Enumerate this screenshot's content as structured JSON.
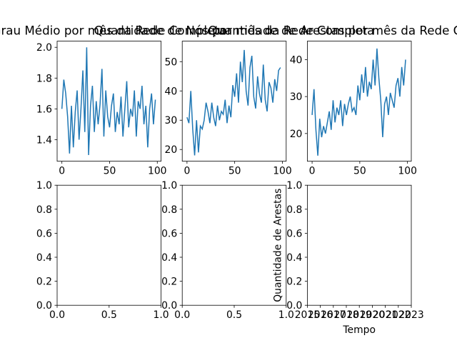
{
  "chart_data": [
    {
      "type": "line",
      "title": "Grau Médio por mês da Rede Completa",
      "x": [
        0,
        2,
        4,
        6,
        8,
        10,
        12,
        14,
        16,
        18,
        20,
        22,
        24,
        26,
        28,
        30,
        32,
        34,
        36,
        38,
        40,
        42,
        44,
        46,
        48,
        50,
        52,
        54,
        56,
        58,
        60,
        62,
        64,
        66,
        68,
        70,
        72,
        74,
        76,
        78,
        80,
        82,
        84,
        86,
        88,
        90,
        92,
        94,
        96,
        98
      ],
      "series": [
        {
          "color": "#1f77b4",
          "values": [
            1.6,
            1.79,
            1.7,
            1.55,
            1.31,
            1.62,
            1.35,
            1.58,
            1.72,
            1.4,
            1.6,
            1.85,
            1.45,
            2.0,
            1.3,
            1.62,
            1.75,
            1.45,
            1.65,
            1.5,
            1.63,
            1.86,
            1.42,
            1.72,
            1.55,
            1.48,
            1.62,
            1.7,
            1.45,
            1.58,
            1.5,
            1.68,
            1.42,
            1.6,
            1.78,
            1.48,
            1.6,
            1.55,
            1.72,
            1.42,
            1.65,
            1.6,
            1.75,
            1.5,
            1.62,
            1.35,
            1.6,
            1.7,
            1.5,
            1.66
          ]
        }
      ],
      "xlim": [
        -5,
        104
      ],
      "xticks": [
        0,
        50,
        100
      ],
      "ylim": [
        1.26,
        2.04
      ],
      "yticks": [
        1.4,
        1.6,
        1.8,
        {
          "value": 2,
          "label": "2.0"
        }
      ]
    },
    {
      "type": "line",
      "title": "Quantidade de Nós por mês da Rede Completa",
      "x": [
        0,
        2,
        4,
        6,
        8,
        10,
        12,
        14,
        16,
        18,
        20,
        22,
        24,
        26,
        28,
        30,
        32,
        34,
        36,
        38,
        40,
        42,
        44,
        46,
        48,
        50,
        52,
        54,
        56,
        58,
        60,
        62,
        64,
        66,
        68,
        70,
        72,
        74,
        76,
        78,
        80,
        82,
        84,
        86,
        88,
        90,
        92,
        94,
        96,
        98
      ],
      "series": [
        {
          "color": "#1f77b4",
          "values": [
            31,
            29,
            40,
            27,
            18,
            30,
            19,
            28,
            27,
            30,
            36,
            33,
            29,
            36,
            31,
            28,
            35,
            30,
            33,
            32,
            37,
            29,
            35,
            31,
            42,
            38,
            46,
            36,
            50,
            43,
            54,
            40,
            35,
            48,
            52,
            38,
            34,
            45,
            39,
            36,
            49,
            37,
            33,
            43,
            41,
            36,
            44,
            40,
            47,
            48
          ]
        }
      ],
      "xlim": [
        -5,
        104
      ],
      "xticks": [
        0,
        50,
        100
      ],
      "ylim": [
        16,
        57
      ],
      "yticks": [
        20,
        30,
        40,
        50
      ]
    },
    {
      "type": "line",
      "title": "Quantidade de Arestas por mês da Rede Completa",
      "x": [
        0,
        2,
        4,
        6,
        8,
        10,
        12,
        14,
        16,
        18,
        20,
        22,
        24,
        26,
        28,
        30,
        32,
        34,
        36,
        38,
        40,
        42,
        44,
        46,
        48,
        50,
        52,
        54,
        56,
        58,
        60,
        62,
        64,
        66,
        68,
        70,
        72,
        74,
        76,
        78,
        80,
        82,
        84,
        86,
        88,
        90,
        92,
        94,
        96,
        98
      ],
      "series": [
        {
          "color": "#1f77b4",
          "values": [
            25,
            32,
            21,
            14,
            24,
            19,
            22,
            20,
            23,
            26,
            21,
            29,
            23,
            27,
            25,
            29,
            22,
            28,
            25,
            28,
            30,
            26,
            27,
            25,
            33,
            29,
            36,
            31,
            38,
            30,
            34,
            32,
            40,
            33,
            43,
            35,
            29,
            19,
            28,
            30,
            25,
            31,
            29,
            27,
            33,
            35,
            30,
            38,
            33,
            40
          ]
        }
      ],
      "xlim": [
        -5,
        104
      ],
      "xticks": [
        0,
        50,
        100
      ],
      "ylim": [
        12.5,
        45
      ],
      "yticks": [
        20,
        30,
        40
      ]
    },
    {
      "type": "line",
      "xlim": [
        0,
        1
      ],
      "xticks": [
        {
          "value": 0,
          "label": "0.0"
        },
        0.5,
        {
          "value": 1,
          "label": "1.0"
        }
      ],
      "ylim": [
        0,
        1
      ],
      "yticks": [
        {
          "value": 0,
          "label": "0.0"
        },
        0.2,
        0.4,
        0.6,
        0.8,
        {
          "value": 1,
          "label": "1.0"
        }
      ]
    },
    {
      "type": "line",
      "xlim": [
        0,
        1
      ],
      "xticks": [
        {
          "value": 0,
          "label": "0.0"
        },
        0.5,
        {
          "value": 1,
          "label": "1.0"
        }
      ],
      "ylim": [
        0,
        1
      ],
      "yticks": [
        {
          "value": 0,
          "label": "0.0"
        },
        0.2,
        0.4,
        0.6,
        0.8,
        {
          "value": 1,
          "label": "1.0"
        }
      ]
    },
    {
      "type": "line",
      "x_label": "Tempo",
      "y_label": "Quantidade de Arestas",
      "xlim": [
        2015,
        2023
      ],
      "xticks": [
        2015,
        2016,
        2017,
        2018,
        2019,
        2020,
        2021,
        2022,
        2023
      ],
      "ylim": [
        0,
        1
      ],
      "yticks": [
        {
          "value": 0,
          "label": "0.0"
        },
        0.2,
        0.4,
        0.6,
        0.8,
        {
          "value": 1,
          "label": "1.0"
        }
      ]
    }
  ]
}
